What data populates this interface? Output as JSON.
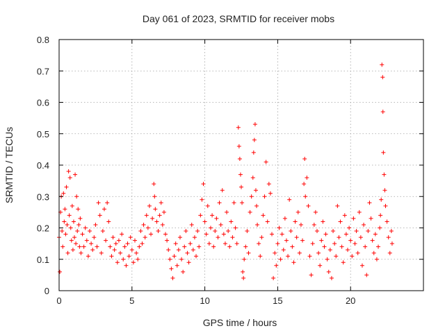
{
  "chart_data": {
    "type": "scatter",
    "title": "Day 061 of 2023, SRMTID for receiver mobs",
    "xlabel": "GPS time / hours",
    "ylabel": "SRMTID / TECUs",
    "xlim": [
      0,
      25
    ],
    "ylim": [
      0,
      0.8
    ],
    "xticks": [
      0,
      5,
      10,
      15,
      20
    ],
    "xtick_labels": [
      "0",
      "5",
      "10",
      "15",
      "20"
    ],
    "yticks": [
      0,
      0.1,
      0.2,
      0.3,
      0.4,
      0.5,
      0.6,
      0.7,
      0.8
    ],
    "ytick_labels": [
      "0",
      "0.1",
      "0.2",
      "0.3",
      "0.4",
      "0.5",
      "0.6",
      "0.7",
      "0.8"
    ],
    "grid": true,
    "marker": "plus",
    "color": "#ff0000",
    "series": [
      {
        "name": "mobs",
        "points": [
          [
            0.0,
            0.17
          ],
          [
            0.05,
            0.06
          ],
          [
            0.1,
            0.25
          ],
          [
            0.15,
            0.3
          ],
          [
            0.2,
            0.19
          ],
          [
            0.25,
            0.14
          ],
          [
            0.3,
            0.31
          ],
          [
            0.35,
            0.22
          ],
          [
            0.4,
            0.26
          ],
          [
            0.45,
            0.18
          ],
          [
            0.5,
            0.33
          ],
          [
            0.55,
            0.21
          ],
          [
            0.6,
            0.12
          ],
          [
            0.65,
            0.38
          ],
          [
            0.7,
            0.24
          ],
          [
            0.75,
            0.36
          ],
          [
            0.8,
            0.2
          ],
          [
            0.85,
            0.16
          ],
          [
            0.9,
            0.27
          ],
          [
            0.95,
            0.13
          ],
          [
            1.0,
            0.22
          ],
          [
            1.05,
            0.17
          ],
          [
            1.1,
            0.37
          ],
          [
            1.15,
            0.15
          ],
          [
            1.2,
            0.3
          ],
          [
            1.25,
            0.19
          ],
          [
            1.3,
            0.26
          ],
          [
            1.35,
            0.21
          ],
          [
            1.4,
            0.14
          ],
          [
            1.45,
            0.23
          ],
          [
            1.5,
            0.12
          ],
          [
            1.6,
            0.18
          ],
          [
            1.7,
            0.14
          ],
          [
            1.8,
            0.2
          ],
          [
            1.9,
            0.16
          ],
          [
            2.0,
            0.11
          ],
          [
            2.1,
            0.19
          ],
          [
            2.2,
            0.15
          ],
          [
            2.3,
            0.13
          ],
          [
            2.4,
            0.17
          ],
          [
            2.5,
            0.21
          ],
          [
            2.6,
            0.14
          ],
          [
            2.7,
            0.28
          ],
          [
            2.8,
            0.24
          ],
          [
            2.9,
            0.12
          ],
          [
            3.0,
            0.19
          ],
          [
            3.1,
            0.26
          ],
          [
            3.2,
            0.16
          ],
          [
            3.3,
            0.28
          ],
          [
            3.4,
            0.22
          ],
          [
            3.5,
            0.14
          ],
          [
            3.6,
            0.11
          ],
          [
            3.7,
            0.17
          ],
          [
            3.8,
            0.13
          ],
          [
            3.9,
            0.15
          ],
          [
            4.0,
            0.09
          ],
          [
            4.1,
            0.16
          ],
          [
            4.2,
            0.12
          ],
          [
            4.3,
            0.18
          ],
          [
            4.4,
            0.1
          ],
          [
            4.5,
            0.14
          ],
          [
            4.6,
            0.08
          ],
          [
            4.7,
            0.15
          ],
          [
            4.8,
            0.11
          ],
          [
            4.9,
            0.17
          ],
          [
            5.0,
            0.13
          ],
          [
            5.1,
            0.09
          ],
          [
            5.2,
            0.16
          ],
          [
            5.3,
            0.12
          ],
          [
            5.4,
            0.1
          ],
          [
            5.5,
            0.14
          ],
          [
            5.6,
            0.19
          ],
          [
            5.7,
            0.15
          ],
          [
            5.8,
            0.21
          ],
          [
            5.9,
            0.17
          ],
          [
            6.0,
            0.24
          ],
          [
            6.1,
            0.2
          ],
          [
            6.2,
            0.27
          ],
          [
            6.3,
            0.18
          ],
          [
            6.4,
            0.23
          ],
          [
            6.5,
            0.34
          ],
          [
            6.55,
            0.3
          ],
          [
            6.6,
            0.26
          ],
          [
            6.7,
            0.22
          ],
          [
            6.8,
            0.19
          ],
          [
            6.9,
            0.24
          ],
          [
            7.0,
            0.28
          ],
          [
            7.1,
            0.21
          ],
          [
            7.2,
            0.25
          ],
          [
            7.3,
            0.18
          ],
          [
            7.4,
            0.16
          ],
          [
            7.5,
            0.13
          ],
          [
            7.6,
            0.1
          ],
          [
            7.7,
            0.07
          ],
          [
            7.8,
            0.04
          ],
          [
            7.9,
            0.11
          ],
          [
            8.0,
            0.15
          ],
          [
            8.1,
            0.08
          ],
          [
            8.2,
            0.13
          ],
          [
            8.3,
            0.17
          ],
          [
            8.4,
            0.1
          ],
          [
            8.5,
            0.06
          ],
          [
            8.6,
            0.14
          ],
          [
            8.7,
            0.19
          ],
          [
            8.8,
            0.12
          ],
          [
            8.9,
            0.09
          ],
          [
            9.0,
            0.15
          ],
          [
            9.1,
            0.21
          ],
          [
            9.2,
            0.13
          ],
          [
            9.3,
            0.17
          ],
          [
            9.4,
            0.11
          ],
          [
            9.5,
            0.19
          ],
          [
            9.6,
            0.14
          ],
          [
            9.7,
            0.24
          ],
          [
            9.8,
            0.29
          ],
          [
            9.9,
            0.34
          ],
          [
            10.0,
            0.22
          ],
          [
            10.1,
            0.18
          ],
          [
            10.2,
            0.27
          ],
          [
            10.3,
            0.15
          ],
          [
            10.4,
            0.2
          ],
          [
            10.5,
            0.24
          ],
          [
            10.6,
            0.14
          ],
          [
            10.7,
            0.19
          ],
          [
            10.8,
            0.23
          ],
          [
            10.9,
            0.17
          ],
          [
            11.0,
            0.28
          ],
          [
            11.1,
            0.21
          ],
          [
            11.2,
            0.32
          ],
          [
            11.3,
            0.18
          ],
          [
            11.4,
            0.15
          ],
          [
            11.5,
            0.25
          ],
          [
            11.6,
            0.19
          ],
          [
            11.7,
            0.14
          ],
          [
            11.8,
            0.22
          ],
          [
            11.9,
            0.17
          ],
          [
            12.0,
            0.28
          ],
          [
            12.1,
            0.2
          ],
          [
            12.2,
            0.15
          ],
          [
            12.3,
            0.52
          ],
          [
            12.35,
            0.46
          ],
          [
            12.4,
            0.42
          ],
          [
            12.45,
            0.37
          ],
          [
            12.5,
            0.33
          ],
          [
            12.55,
            0.28
          ],
          [
            12.6,
            0.06
          ],
          [
            12.65,
            0.04
          ],
          [
            12.7,
            0.1
          ],
          [
            12.8,
            0.14
          ],
          [
            12.9,
            0.19
          ],
          [
            13.0,
            0.12
          ],
          [
            13.1,
            0.25
          ],
          [
            13.2,
            0.3
          ],
          [
            13.3,
            0.36
          ],
          [
            13.35,
            0.44
          ],
          [
            13.4,
            0.48
          ],
          [
            13.45,
            0.53
          ],
          [
            13.5,
            0.32
          ],
          [
            13.55,
            0.27
          ],
          [
            13.6,
            0.21
          ],
          [
            13.7,
            0.15
          ],
          [
            13.8,
            0.11
          ],
          [
            13.9,
            0.17
          ],
          [
            14.0,
            0.24
          ],
          [
            14.1,
            0.3
          ],
          [
            14.2,
            0.41
          ],
          [
            14.3,
            0.22
          ],
          [
            14.4,
            0.34
          ],
          [
            14.5,
            0.31
          ],
          [
            14.6,
            0.18
          ],
          [
            14.7,
            0.04
          ],
          [
            14.8,
            0.12
          ],
          [
            14.9,
            0.08
          ],
          [
            15.0,
            0.15
          ],
          [
            15.1,
            0.2
          ],
          [
            15.2,
            0.1
          ],
          [
            15.3,
            0.18
          ],
          [
            15.4,
            0.13
          ],
          [
            15.5,
            0.23
          ],
          [
            15.6,
            0.16
          ],
          [
            15.7,
            0.11
          ],
          [
            15.8,
            0.29
          ],
          [
            15.9,
            0.19
          ],
          [
            16.0,
            0.14
          ],
          [
            16.1,
            0.09
          ],
          [
            16.2,
            0.22
          ],
          [
            16.3,
            0.17
          ],
          [
            16.4,
            0.25
          ],
          [
            16.5,
            0.12
          ],
          [
            16.6,
            0.21
          ],
          [
            16.7,
            0.16
          ],
          [
            16.8,
            0.34
          ],
          [
            16.85,
            0.42
          ],
          [
            16.9,
            0.3
          ],
          [
            17.0,
            0.36
          ],
          [
            17.1,
            0.27
          ],
          [
            17.2,
            0.11
          ],
          [
            17.3,
            0.05
          ],
          [
            17.4,
            0.15
          ],
          [
            17.5,
            0.21
          ],
          [
            17.6,
            0.25
          ],
          [
            17.7,
            0.19
          ],
          [
            17.8,
            0.12
          ],
          [
            17.9,
            0.08
          ],
          [
            18.0,
            0.16
          ],
          [
            18.1,
            0.22
          ],
          [
            18.2,
            0.14
          ],
          [
            18.3,
            0.18
          ],
          [
            18.4,
            0.1
          ],
          [
            18.5,
            0.06
          ],
          [
            18.6,
            0.13
          ],
          [
            18.7,
            0.04
          ],
          [
            18.8,
            0.19
          ],
          [
            18.9,
            0.15
          ],
          [
            19.0,
            0.11
          ],
          [
            19.1,
            0.27
          ],
          [
            19.2,
            0.17
          ],
          [
            19.3,
            0.22
          ],
          [
            19.4,
            0.14
          ],
          [
            19.5,
            0.09
          ],
          [
            19.6,
            0.24
          ],
          [
            19.7,
            0.18
          ],
          [
            19.8,
            0.13
          ],
          [
            19.9,
            0.2
          ],
          [
            20.0,
            0.16
          ],
          [
            20.1,
            0.11
          ],
          [
            20.2,
            0.23
          ],
          [
            20.3,
            0.15
          ],
          [
            20.4,
            0.19
          ],
          [
            20.5,
            0.12
          ],
          [
            20.6,
            0.25
          ],
          [
            20.7,
            0.17
          ],
          [
            20.8,
            0.08
          ],
          [
            20.9,
            0.21
          ],
          [
            21.0,
            0.14
          ],
          [
            21.1,
            0.05
          ],
          [
            21.2,
            0.19
          ],
          [
            21.3,
            0.28
          ],
          [
            21.4,
            0.23
          ],
          [
            21.5,
            0.16
          ],
          [
            21.6,
            0.12
          ],
          [
            21.7,
            0.18
          ],
          [
            21.8,
            0.1
          ],
          [
            21.9,
            0.14
          ],
          [
            22.0,
            0.2
          ],
          [
            22.05,
            0.24
          ],
          [
            22.1,
            0.29
          ],
          [
            22.15,
            0.72
          ],
          [
            22.2,
            0.68
          ],
          [
            22.22,
            0.57
          ],
          [
            22.25,
            0.44
          ],
          [
            22.3,
            0.37
          ],
          [
            22.35,
            0.32
          ],
          [
            22.4,
            0.27
          ],
          [
            22.5,
            0.22
          ],
          [
            22.6,
            0.17
          ],
          [
            22.7,
            0.12
          ],
          [
            22.8,
            0.19
          ],
          [
            22.85,
            0.15
          ]
        ]
      }
    ]
  }
}
